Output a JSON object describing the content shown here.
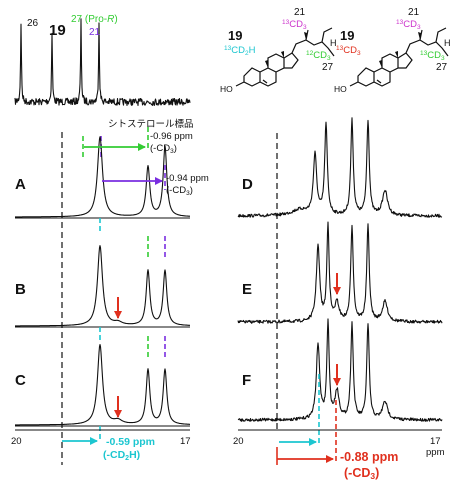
{
  "colors": {
    "green": "#33cc33",
    "purple": "#7a2ee0",
    "cyan": "#1cc6d0",
    "red": "#e0301e",
    "magenta": "#cc33cc",
    "black": "#111111"
  },
  "reference": {
    "labels": {
      "c26": "26",
      "c19": "19",
      "c27": "27 (Pro-",
      "c27_r": "R",
      "c27_close": ")",
      "c21": "21"
    },
    "sample_label": "シトステロール標品"
  },
  "panels": {
    "A": "A",
    "B": "B",
    "C": "C",
    "D": "D",
    "E": "E",
    "F": "F"
  },
  "shifts": {
    "a_green_ppm": "-0.96 ppm",
    "a_green_group": "(-CD",
    "a_green_sub": "3",
    "a_green_close": ")",
    "a_purple_ppm": "-0.94 ppm",
    "a_purple_group": "(-CD",
    "a_purple_sub": "3",
    "a_purple_close": ")",
    "cyan_ppm": "-0.59 ppm",
    "cyan_group": "(-CD",
    "cyan_sub": "2",
    "cyan_h": "H)",
    "red_ppm": "-0.88 ppm",
    "red_group": "(-CD",
    "red_sub": "3",
    "red_close": ")"
  },
  "axes": {
    "left_start": "20",
    "left_end": "17",
    "right_start": "20",
    "right_end": "17",
    "unit": "ppm"
  },
  "structures": {
    "s1": {
      "compound": "19",
      "c21": "21",
      "c27": "27",
      "c19_label": "CD",
      "c19_iso": "13",
      "c19_sub": "2",
      "c19_h": "H",
      "c21_label": "CD",
      "c21_iso": "13",
      "c21_sub": "3",
      "c27_label": "CD",
      "c27_iso": "12",
      "c27_sub": "3",
      "ho": "HO",
      "h": "H"
    },
    "s2": {
      "compound": "19",
      "c21": "21",
      "c27": "27",
      "c19_label": "CD",
      "c19_iso": "13",
      "c19_sub": "3",
      "c21_label": "CD",
      "c21_iso": "13",
      "c21_sub": "3",
      "c27_label": "CD",
      "c27_iso": "13",
      "c27_sub": "3",
      "ho": "HO",
      "h": "H"
    }
  }
}
